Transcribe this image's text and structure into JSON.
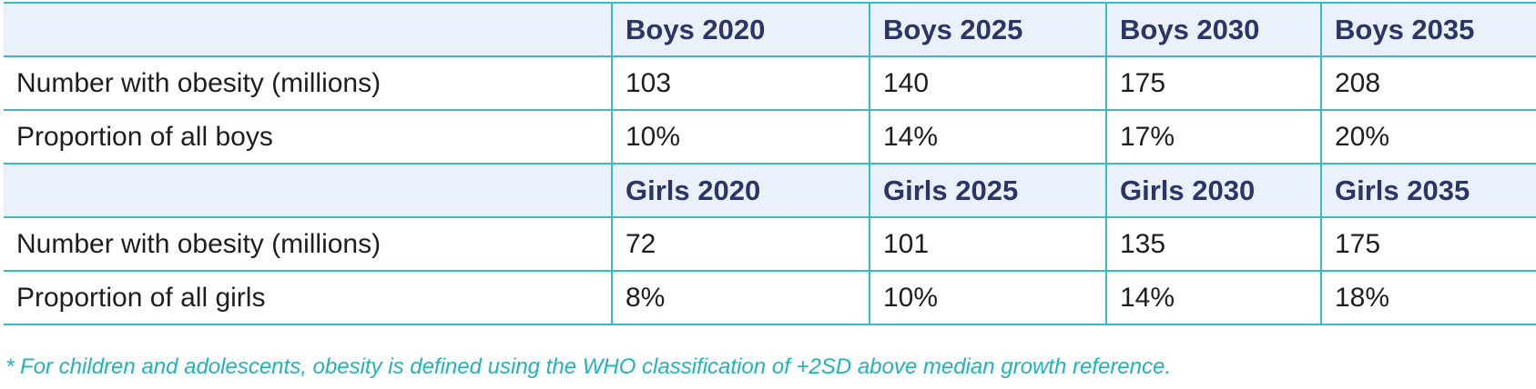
{
  "colors": {
    "border": "#35bcc5",
    "header_background": "#ebf1fa",
    "header_text": "#2b3566",
    "body_text": "#1e1e1e",
    "footnote_text": "#21b3bd"
  },
  "boys": {
    "header": [
      "",
      "Boys 2020",
      "Boys 2025",
      "Boys 2030",
      "Boys 2035"
    ],
    "rows": [
      {
        "label": "Number with obesity (millions)",
        "values": [
          "103",
          "140",
          "175",
          "208"
        ]
      },
      {
        "label": "Proportion of all boys",
        "values": [
          "10%",
          "14%",
          "17%",
          "20%"
        ]
      }
    ]
  },
  "girls": {
    "header": [
      "",
      "Girls 2020",
      "Girls 2025",
      "Girls 2030",
      "Girls 2035"
    ],
    "rows": [
      {
        "label": "Number with obesity (millions)",
        "values": [
          "72",
          "101",
          "135",
          "175"
        ]
      },
      {
        "label": "Proportion of all girls",
        "values": [
          "8%",
          "10%",
          "14%",
          "18%"
        ]
      }
    ]
  },
  "footnote": "* For children and adolescents, obesity is defined using the WHO classification of +2SD above median growth reference."
}
